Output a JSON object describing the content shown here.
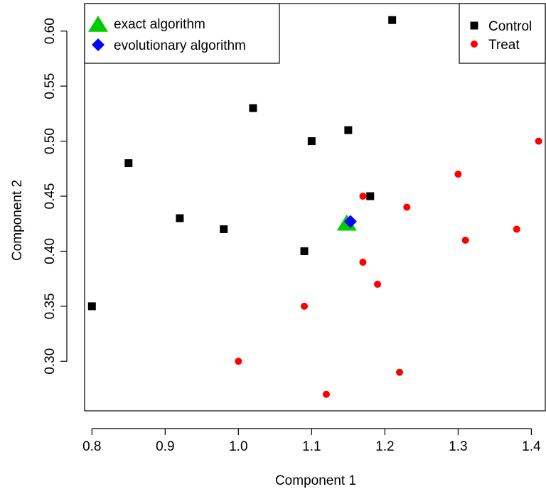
{
  "chart_data": {
    "type": "scatter",
    "title": "",
    "xlabel": "Component 1",
    "ylabel": "Component 2",
    "xlim": [
      0.79,
      1.42
    ],
    "ylim": [
      0.255,
      0.625
    ],
    "xticks": [
      "0.8",
      "0.9",
      "1.0",
      "1.1",
      "1.2",
      "1.3",
      "1.4"
    ],
    "yticks": [
      "0.30",
      "0.35",
      "0.40",
      "0.45",
      "0.50",
      "0.55",
      "0.60"
    ],
    "grid": false,
    "series": [
      {
        "name": "Control",
        "marker": "square",
        "color": "#000000",
        "points": [
          [
            0.8,
            0.35
          ],
          [
            0.85,
            0.48
          ],
          [
            0.92,
            0.43
          ],
          [
            0.98,
            0.42
          ],
          [
            1.02,
            0.53
          ],
          [
            1.09,
            0.4
          ],
          [
            1.1,
            0.5
          ],
          [
            1.15,
            0.51
          ],
          [
            1.18,
            0.45
          ],
          [
            1.21,
            0.61
          ]
        ]
      },
      {
        "name": "Treat",
        "marker": "circle",
        "color": "#ff0000",
        "points": [
          [
            1.0,
            0.3
          ],
          [
            1.09,
            0.35
          ],
          [
            1.12,
            0.27
          ],
          [
            1.17,
            0.45
          ],
          [
            1.17,
            0.39
          ],
          [
            1.19,
            0.37
          ],
          [
            1.22,
            0.29
          ],
          [
            1.23,
            0.44
          ],
          [
            1.3,
            0.47
          ],
          [
            1.31,
            0.41
          ],
          [
            1.38,
            0.42
          ],
          [
            1.41,
            0.5
          ]
        ]
      },
      {
        "name": "exact algorithm",
        "marker": "triangle",
        "color": "#00cc00",
        "points": [
          [
            1.148,
            0.425
          ]
        ]
      },
      {
        "name": "evolutionary algorithm",
        "marker": "diamond",
        "color": "#0000ff",
        "points": [
          [
            1.153,
            0.427
          ]
        ]
      }
    ],
    "legends": [
      {
        "position": "top-left",
        "entries": [
          "exact algorithm",
          "evolutionary algorithm"
        ]
      },
      {
        "position": "top-right",
        "entries": [
          "Control",
          "Treat"
        ]
      }
    ]
  }
}
